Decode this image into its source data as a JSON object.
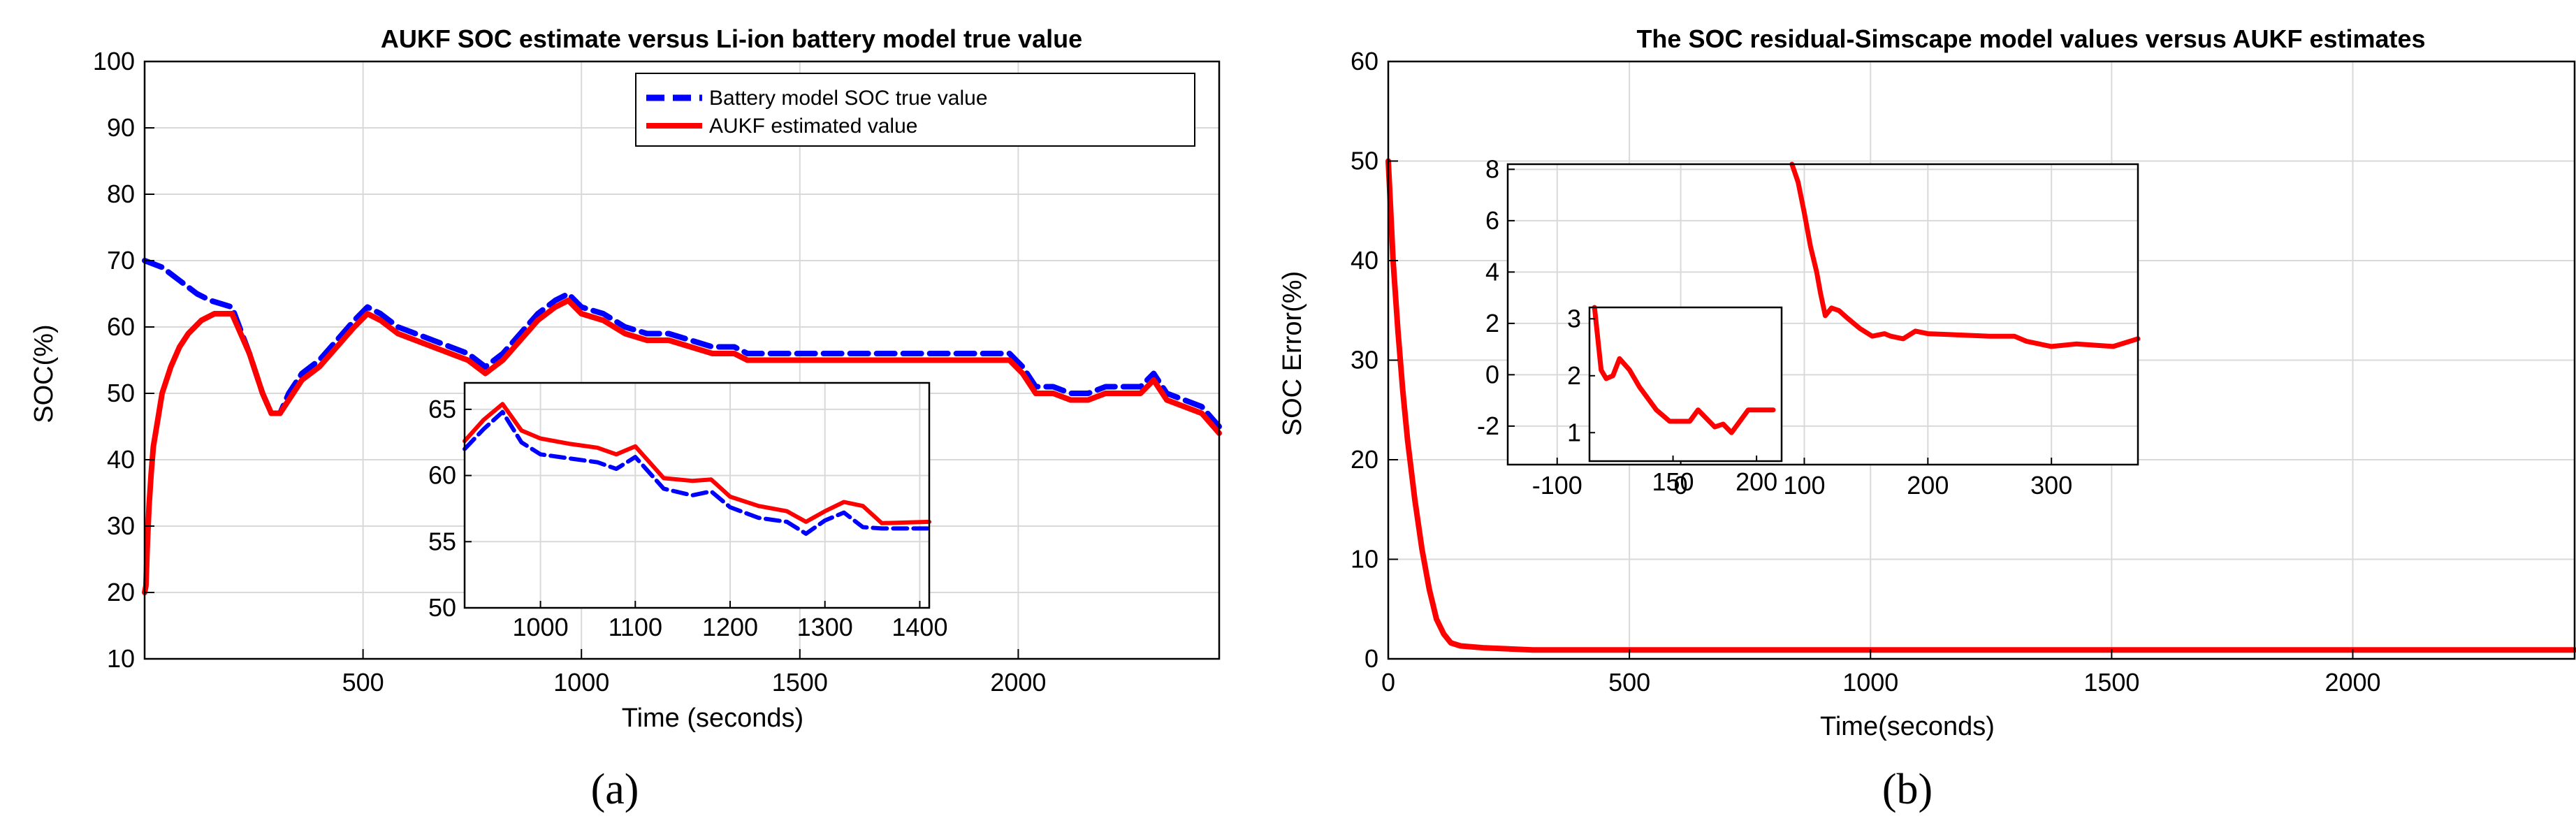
{
  "chart_data": [
    {
      "type": "line",
      "panel_label": "(a)",
      "title": "AUKF SOC estimate versus Li-ion battery model true value",
      "xlabel": "Time (seconds)",
      "ylabel": "SOC(%)",
      "xlim": [
        0,
        2460
      ],
      "ylim": [
        10,
        100
      ],
      "xticks": [
        500,
        1000,
        1500,
        2000
      ],
      "yticks": [
        10,
        20,
        30,
        40,
        50,
        60,
        70,
        80,
        90,
        100
      ],
      "grid": true,
      "legend_position": "top-right",
      "series": [
        {
          "name": "Battery model SOC true value",
          "color": "#0000ff",
          "style": "dashed",
          "x": [
            0,
            40,
            80,
            120,
            150,
            200,
            240,
            270,
            290,
            310,
            330,
            360,
            400,
            440,
            480,
            510,
            540,
            580,
            620,
            660,
            700,
            740,
            780,
            820,
            860,
            900,
            940,
            970,
            1000,
            1050,
            1100,
            1150,
            1200,
            1250,
            1300,
            1350,
            1380,
            1400,
            1500,
            1600,
            1700,
            1800,
            1900,
            1980,
            2010,
            2040,
            2080,
            2120,
            2160,
            2200,
            2240,
            2280,
            2310,
            2340,
            2380,
            2420,
            2460
          ],
          "y": [
            70,
            69,
            67,
            65,
            64,
            63,
            56,
            50,
            47,
            47,
            50,
            53,
            55,
            58,
            61,
            63,
            62,
            60,
            59,
            58,
            57,
            56,
            54,
            56,
            59,
            62,
            64,
            65,
            63,
            62,
            60,
            59,
            59,
            58,
            57,
            57,
            56,
            56,
            56,
            56,
            56,
            56,
            56,
            56,
            54,
            51,
            51,
            50,
            50,
            51,
            51,
            51,
            53,
            50,
            49,
            48,
            45
          ]
        },
        {
          "name": "AUKF estimated value",
          "color": "#ff0000",
          "style": "solid",
          "x": [
            0,
            3,
            6,
            10,
            15,
            20,
            30,
            40,
            60,
            80,
            100,
            130,
            160,
            200,
            240,
            270,
            290,
            310,
            330,
            360,
            400,
            440,
            480,
            510,
            540,
            580,
            620,
            660,
            700,
            740,
            780,
            820,
            860,
            900,
            940,
            970,
            1000,
            1050,
            1100,
            1150,
            1200,
            1250,
            1300,
            1350,
            1380,
            1400,
            1500,
            1600,
            1700,
            1800,
            1900,
            1980,
            2010,
            2040,
            2080,
            2120,
            2160,
            2200,
            2240,
            2280,
            2310,
            2340,
            2380,
            2420,
            2460
          ],
          "y": [
            20,
            21,
            27,
            33,
            38,
            42,
            46,
            50,
            54,
            57,
            59,
            61,
            62,
            62,
            56,
            50,
            47,
            47,
            49,
            52,
            54,
            57,
            60,
            62,
            61,
            59,
            58,
            57,
            56,
            55,
            53,
            55,
            58,
            61,
            63,
            64,
            62,
            61,
            59,
            58,
            58,
            57,
            56,
            56,
            55,
            55,
            55,
            55,
            55,
            55,
            55,
            55,
            53,
            50,
            50,
            49,
            49,
            50,
            50,
            50,
            52,
            49,
            48,
            47,
            44
          ]
        }
      ],
      "inset": {
        "xlim": [
          920,
          1410
        ],
        "ylim": [
          50,
          67
        ],
        "xticks": [
          1000,
          1100,
          1200,
          1300,
          1400
        ],
        "yticks": [
          50,
          55,
          60,
          65
        ],
        "grid": true,
        "series": [
          {
            "name": "Battery model SOC true value",
            "color": "#0000ff",
            "style": "dashed",
            "x": [
              920,
              940,
              960,
              980,
              1000,
              1030,
              1060,
              1080,
              1100,
              1130,
              1160,
              1180,
              1200,
              1230,
              1260,
              1280,
              1300,
              1320,
              1340,
              1360,
              1410
            ],
            "y": [
              62,
              63.5,
              64.8,
              62.5,
              61.6,
              61.3,
              61,
              60.5,
              61.4,
              59,
              58.5,
              58.8,
              57.6,
              56.8,
              56.5,
              55.6,
              56.6,
              57.2,
              56.1,
              56.0,
              56.0
            ]
          },
          {
            "name": "AUKF estimated value",
            "color": "#ff0000",
            "style": "solid",
            "x": [
              920,
              940,
              960,
              980,
              1000,
              1030,
              1060,
              1080,
              1100,
              1130,
              1160,
              1180,
              1200,
              1230,
              1260,
              1280,
              1300,
              1320,
              1340,
              1360,
              1410
            ],
            "y": [
              62.6,
              64.2,
              65.4,
              63.4,
              62.8,
              62.4,
              62.1,
              61.6,
              62.2,
              59.8,
              59.6,
              59.7,
              58.4,
              57.7,
              57.3,
              56.5,
              57.3,
              58.0,
              57.7,
              56.4,
              56.5
            ]
          }
        ]
      }
    },
    {
      "type": "line",
      "panel_label": "(b)",
      "title": "The SOC residual-Simscape model values versus AUKF estimates",
      "xlabel": "Time(seconds)",
      "ylabel": "SOC Error(%)",
      "xlim": [
        0,
        2460
      ],
      "ylim": [
        0,
        60
      ],
      "xticks": [
        0,
        500,
        1000,
        1500,
        2000
      ],
      "yticks": [
        0,
        10,
        20,
        30,
        40,
        50,
        60
      ],
      "grid": true,
      "series": [
        {
          "name": "",
          "color": "#ff0000",
          "style": "solid",
          "x": [
            0,
            5,
            10,
            20,
            30,
            40,
            55,
            70,
            85,
            100,
            115,
            130,
            150,
            200,
            300,
            500,
            1000,
            1500,
            2000,
            2460
          ],
          "y": [
            50,
            45,
            40,
            33,
            27,
            22,
            16,
            11,
            7,
            4,
            2.5,
            1.6,
            1.3,
            1.1,
            0.9,
            0.9,
            0.9,
            0.9,
            0.9,
            0.9
          ]
        }
      ],
      "inset": {
        "xlim": [
          -140,
          370
        ],
        "ylim": [
          -3.5,
          8.2
        ],
        "xticks": [
          -100,
          0,
          100,
          200,
          300
        ],
        "yticks": [
          -2,
          0,
          2,
          4,
          6,
          8
        ],
        "grid": true,
        "series": [
          {
            "name": "",
            "color": "#ff0000",
            "style": "solid",
            "x": [
              90,
              95,
              100,
              105,
              110,
              113,
              117,
              122,
              128,
              135,
              145,
              155,
              165,
              170,
              180,
              190,
              200,
              250,
              270,
              280,
              300,
              320,
              350,
              370
            ],
            "y": [
              8.2,
              7.5,
              6.3,
              5.0,
              4.0,
              3.2,
              2.3,
              2.6,
              2.5,
              2.2,
              1.8,
              1.5,
              1.6,
              1.5,
              1.4,
              1.7,
              1.6,
              1.5,
              1.5,
              1.3,
              1.1,
              1.2,
              1.1,
              1.4
            ]
          }
        ],
        "sub_inset": {
          "xlim": [
            100,
            215
          ],
          "ylim": [
            0.5,
            3.2
          ],
          "xticks": [
            150,
            200
          ],
          "yticks": [
            1,
            2,
            3
          ],
          "grid": false,
          "series": [
            {
              "name": "",
              "color": "#ff0000",
              "style": "solid",
              "x": [
                103,
                107,
                110,
                114,
                118,
                124,
                130,
                140,
                148,
                160,
                165,
                170,
                175,
                180,
                185,
                195,
                210
              ],
              "y": [
                3.2,
                2.1,
                1.95,
                2.0,
                2.3,
                2.1,
                1.8,
                1.4,
                1.2,
                1.2,
                1.4,
                1.25,
                1.1,
                1.15,
                1.0,
                1.4,
                1.4
              ]
            }
          ]
        }
      }
    }
  ]
}
